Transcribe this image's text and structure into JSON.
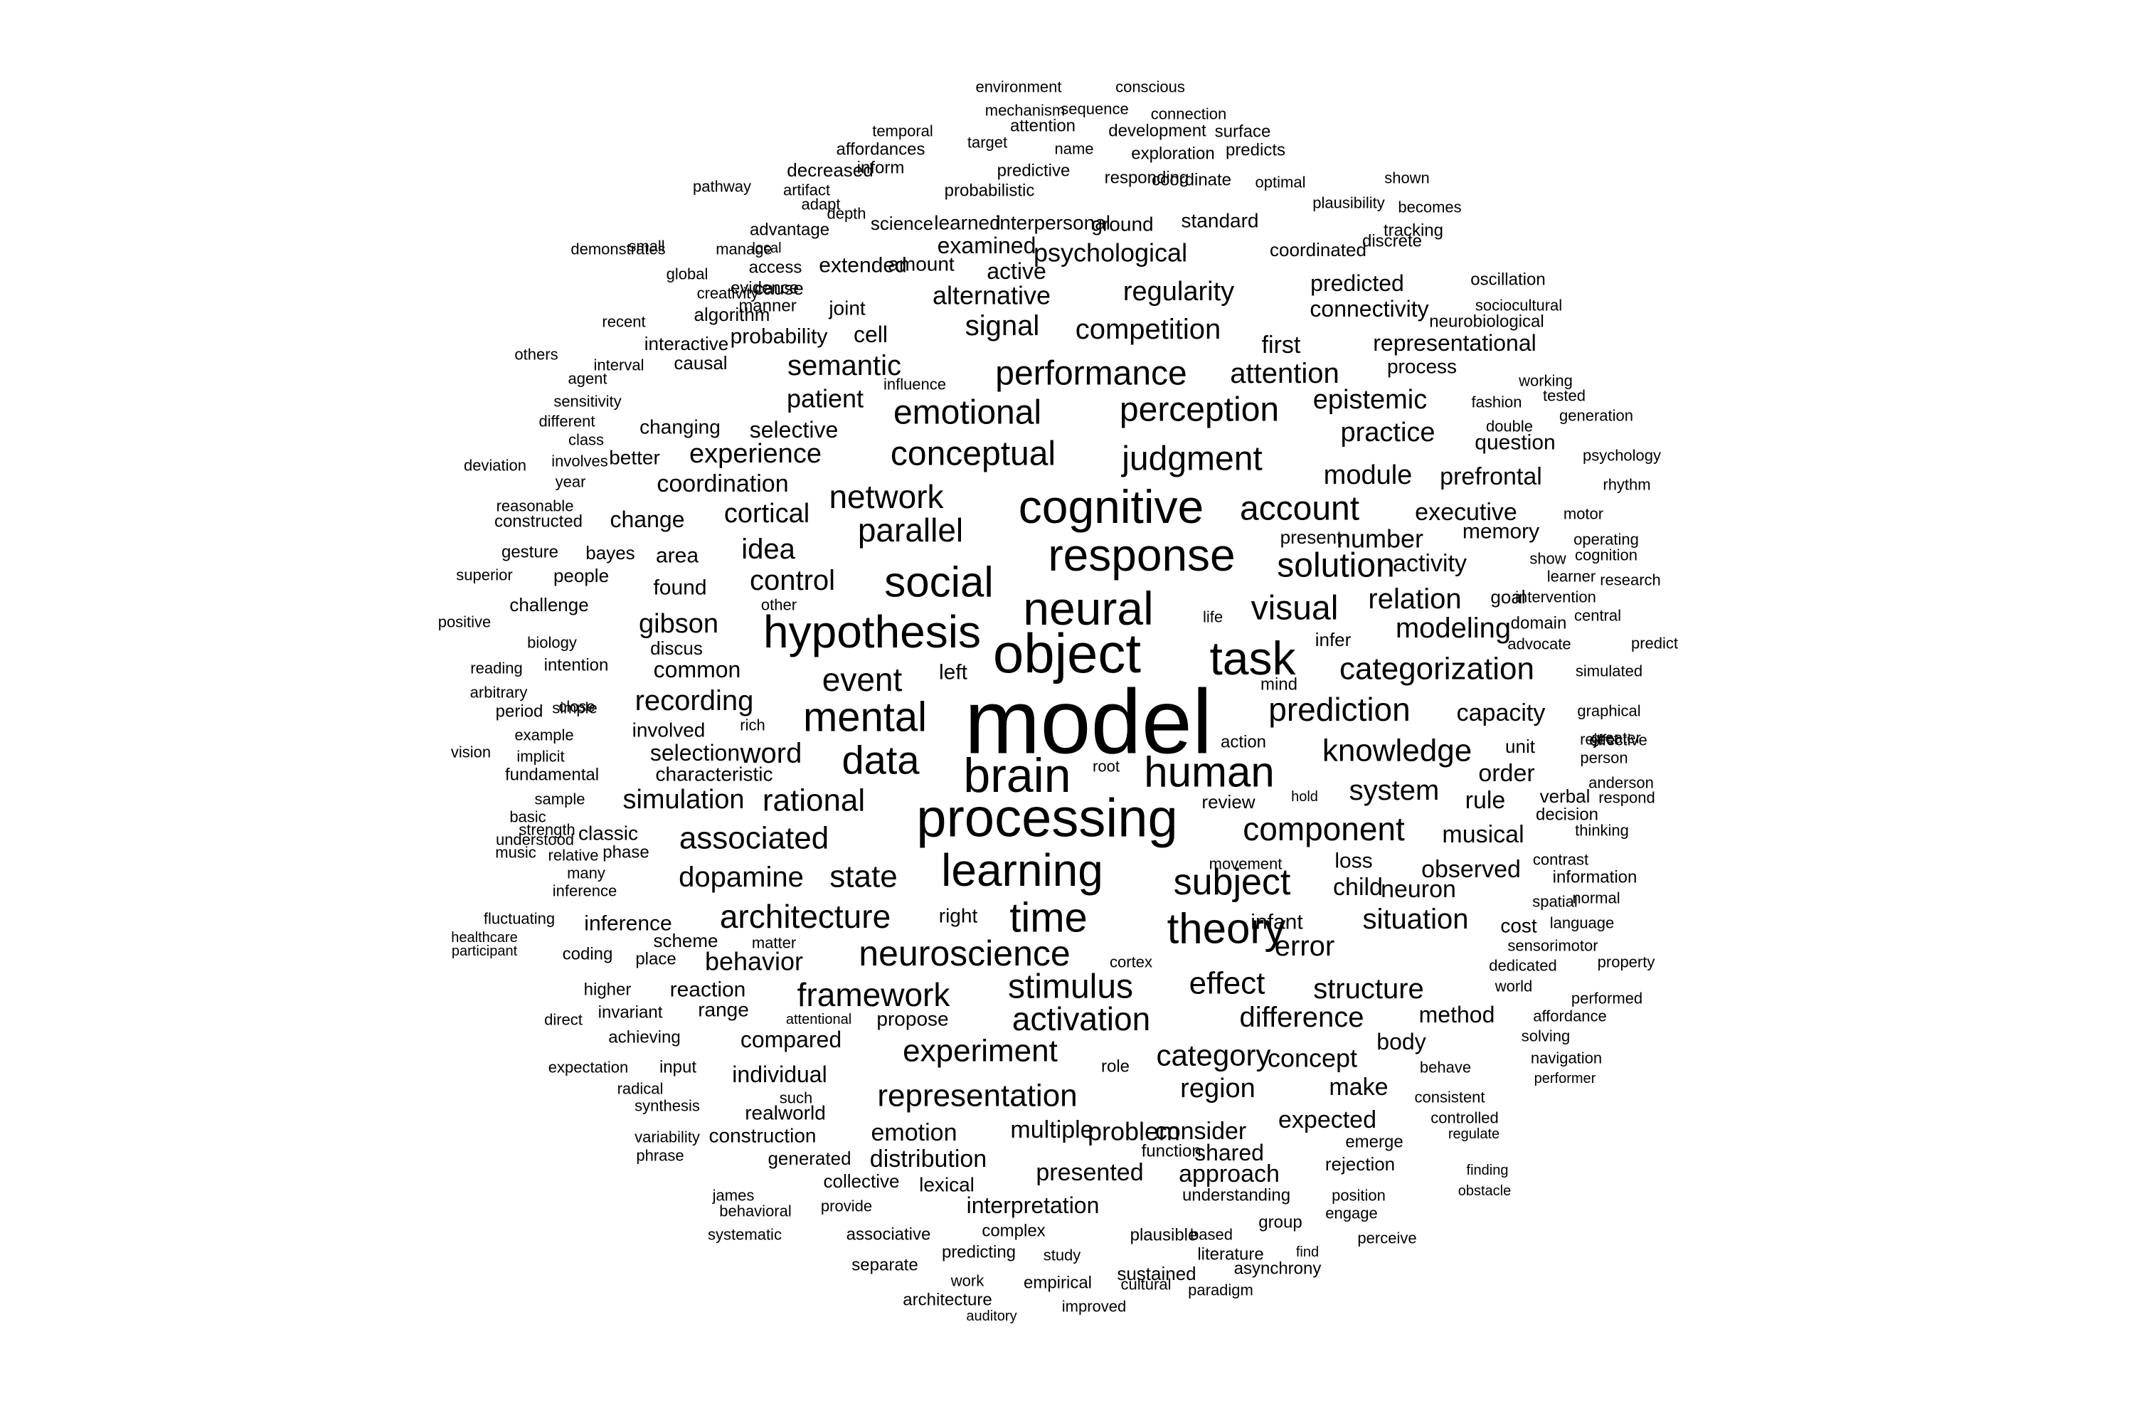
{
  "text_color": "#000000",
  "background": "#ffffff",
  "words": [
    "model",
    "object",
    "processing",
    "cognitive",
    "hypothesis",
    "neural",
    "brain",
    "response",
    "learning",
    "task",
    "social",
    "human",
    "mental",
    "data",
    "theory",
    "time",
    "subject",
    "neuroscience",
    "performance",
    "perception",
    "emotional",
    "conceptual",
    "judgment",
    "network",
    "parallel",
    "account",
    "solution",
    "visual",
    "event",
    "prediction",
    "categorization",
    "knowledge",
    "component",
    "stimulus",
    "activation",
    "framework",
    "experiment",
    "representation",
    "architecture",
    "rational",
    "associated",
    "state",
    "dopamine",
    "category",
    "effect",
    "difference",
    "structure",
    "situation",
    "error",
    "system",
    "modeling",
    "relation",
    "control",
    "idea",
    "cortical",
    "recording",
    "gibson",
    "word",
    "simulation",
    "semantic",
    "signal",
    "competition",
    "regularity",
    "attention",
    "epistemic",
    "practice",
    "module",
    "prefrontal",
    "executive",
    "number",
    "activity",
    "capacity",
    "observed",
    "neuron",
    "musical",
    "order",
    "rule",
    "concept",
    "region",
    "problem",
    "consider",
    "multiple",
    "emotion",
    "distribution",
    "presented",
    "approach",
    "shared",
    "expected",
    "interpretation",
    "method",
    "body",
    "make",
    "child",
    "loss",
    "infant",
    "psychological",
    "alternative",
    "examined",
    "active",
    "extended",
    "patient",
    "experience",
    "coordination",
    "selective",
    "cell",
    "probability",
    "representational",
    "connectivity",
    "predicted",
    "first",
    "process",
    "memory",
    "question",
    "change",
    "area",
    "found",
    "common",
    "involved",
    "selection",
    "characteristic",
    "classic",
    "behavior",
    "compared",
    "individual",
    "realworld",
    "construction",
    "reaction",
    "range",
    "propose",
    "right",
    "left",
    "inference",
    "scheme",
    "place",
    "review",
    "action",
    "unit",
    "verbal",
    "decision",
    "cost",
    "sensorimotor",
    "dedicated",
    "world",
    "goal",
    "domain",
    "show",
    "infer",
    "present",
    "intervention",
    "advocate",
    "simulated",
    "graphical",
    "effective",
    "reject",
    "contrast",
    "information",
    "spatial",
    "language",
    "affordance",
    "navigation",
    "solving",
    "performer",
    "consistent",
    "controlled",
    "regulate",
    "emerge",
    "rejection",
    "finding",
    "obstacle",
    "position",
    "engage",
    "perceive",
    "group",
    "find",
    "asynchrony",
    "literature",
    "paradigm",
    "based",
    "sustained",
    "cultural",
    "plausible",
    "empirical",
    "improved",
    "study",
    "complex",
    "predicting",
    "work",
    "auditory",
    "architecture",
    "separate",
    "associative",
    "systematic",
    "behavioral",
    "james",
    "provide",
    "collective",
    "lexical",
    "generated",
    "variability",
    "phrase",
    "synthesis",
    "radical",
    "expectation",
    "input",
    "such",
    "attentional",
    "direct",
    "invariant",
    "achieving",
    "higher",
    "coding",
    "healthcare",
    "participant",
    "fluctuating",
    "inference",
    "many",
    "relative",
    "phase",
    "music",
    "understood",
    "strength",
    "basic",
    "sample",
    "fundamental",
    "vision",
    "implicit",
    "example",
    "rich",
    "period",
    "simple",
    "arbitrary",
    "close",
    "reading",
    "intention",
    "biology",
    "positive",
    "discus",
    "challenge",
    "other",
    "superior",
    "people",
    "gesture",
    "bayes",
    "constructed",
    "reasonable",
    "year",
    "deviation",
    "involves",
    "better",
    "class",
    "different",
    "changing",
    "agent",
    "interval",
    "others",
    "sensitivity",
    "interactive",
    "causal",
    "recent",
    "algorithm",
    "creativity",
    "global",
    "evidence",
    "access",
    "demonstrates",
    "small",
    "manage",
    "local",
    "advantage",
    "cause",
    "manner",
    "joint",
    "science",
    "amount",
    "learned",
    "interpersonal",
    "ground",
    "standard",
    "coordinated",
    "discrete",
    "tracking",
    "becomes",
    "plausibility",
    "shown",
    "optimal",
    "coordinate",
    "responding",
    "predictive",
    "probabilistic",
    "depth",
    "adapt",
    "artifact",
    "pathway",
    "decreased",
    "inform",
    "affordances",
    "target",
    "name",
    "exploration",
    "predicts",
    "surface",
    "development",
    "attention",
    "temporal",
    "mechanism",
    "sequence",
    "connection",
    "environment",
    "conscious",
    "oscillation",
    "sociocultural",
    "neurobiological",
    "working",
    "tested",
    "fashion",
    "generation",
    "double",
    "psychology",
    "rhythm",
    "motor",
    "operating",
    "cognition",
    "learner",
    "research",
    "central",
    "predict",
    "greater",
    "person",
    "anderson",
    "respond",
    "thinking",
    "normal",
    "property",
    "performed",
    "movement",
    "hold",
    "root",
    "life",
    "influence",
    "mind",
    "function.",
    "understanding",
    "cortex",
    "role",
    "matter",
    "behave"
  ]
}
